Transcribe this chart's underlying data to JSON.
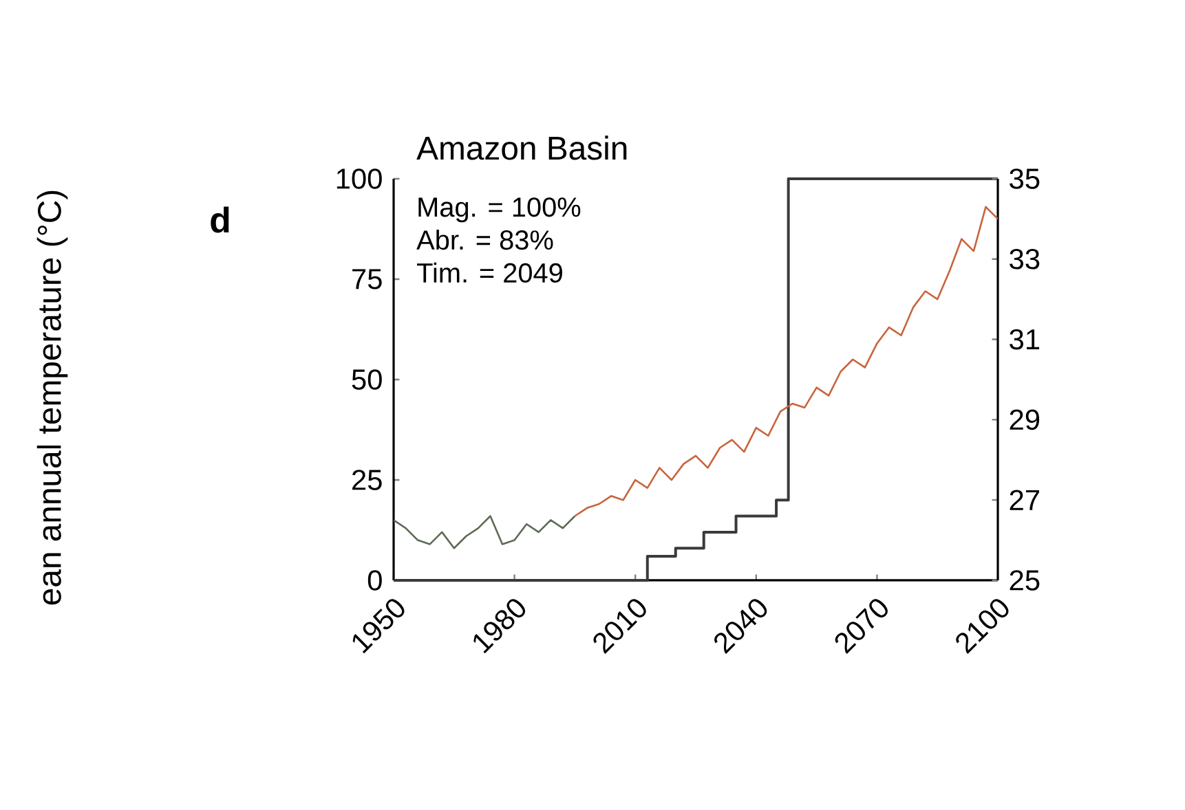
{
  "chart_data": {
    "type": "line",
    "title": "Amazon Basin",
    "annotations": [
      "d",
      "Mag. = 100%",
      "Abr. = 83%",
      "Tim. = 2049",
      "ean annual temperature (°C)"
    ],
    "xlim": [
      1950,
      2100
    ],
    "xticks": [
      1950,
      1980,
      2010,
      2040,
      2070,
      2100
    ],
    "ylim": [
      0,
      100
    ],
    "yticks": [
      0,
      25,
      50,
      75,
      100
    ],
    "y2lim": [
      25,
      35
    ],
    "y2ticks": [
      25,
      27,
      29,
      31,
      33,
      35
    ],
    "series": [
      {
        "type": "step",
        "color": "#3a3a3a",
        "x": [
          1950,
          2013,
          2020,
          2027,
          2035,
          2045,
          2048,
          2100
        ],
        "values": [
          0,
          6,
          8,
          12,
          16,
          20,
          100,
          100
        ]
      },
      {
        "axis": "y2",
        "color": "#5d6b55",
        "x": [
          1950,
          1953,
          1956,
          1959,
          1962,
          1965,
          1968,
          1971,
          1974,
          1977,
          1980,
          1983,
          1986,
          1989,
          1992,
          1995
        ],
        "values": [
          26.5,
          26.3,
          26.0,
          25.9,
          26.2,
          25.8,
          26.1,
          26.3,
          26.6,
          25.9,
          26.0,
          26.4,
          26.2,
          26.5,
          26.3,
          26.6
        ]
      },
      {
        "axis": "y2",
        "color": "#c8643c",
        "x": [
          1995,
          1998,
          2001,
          2004,
          2007,
          2010,
          2013,
          2016,
          2019,
          2022,
          2025,
          2028,
          2031,
          2034,
          2037,
          2040,
          2043,
          2046,
          2049,
          2052,
          2055,
          2058,
          2061,
          2064,
          2067,
          2070,
          2073,
          2076,
          2079,
          2082,
          2085,
          2088,
          2091,
          2094,
          2097,
          2100
        ],
        "values": [
          26.6,
          26.8,
          26.9,
          27.1,
          27.0,
          27.5,
          27.3,
          27.8,
          27.5,
          27.9,
          28.1,
          27.8,
          28.3,
          28.5,
          28.2,
          28.8,
          28.6,
          29.2,
          29.4,
          29.3,
          29.8,
          29.6,
          30.2,
          30.5,
          30.3,
          30.9,
          31.3,
          31.1,
          31.8,
          32.2,
          32.0,
          32.7,
          33.5,
          33.2,
          34.3,
          34.0
        ]
      }
    ]
  }
}
